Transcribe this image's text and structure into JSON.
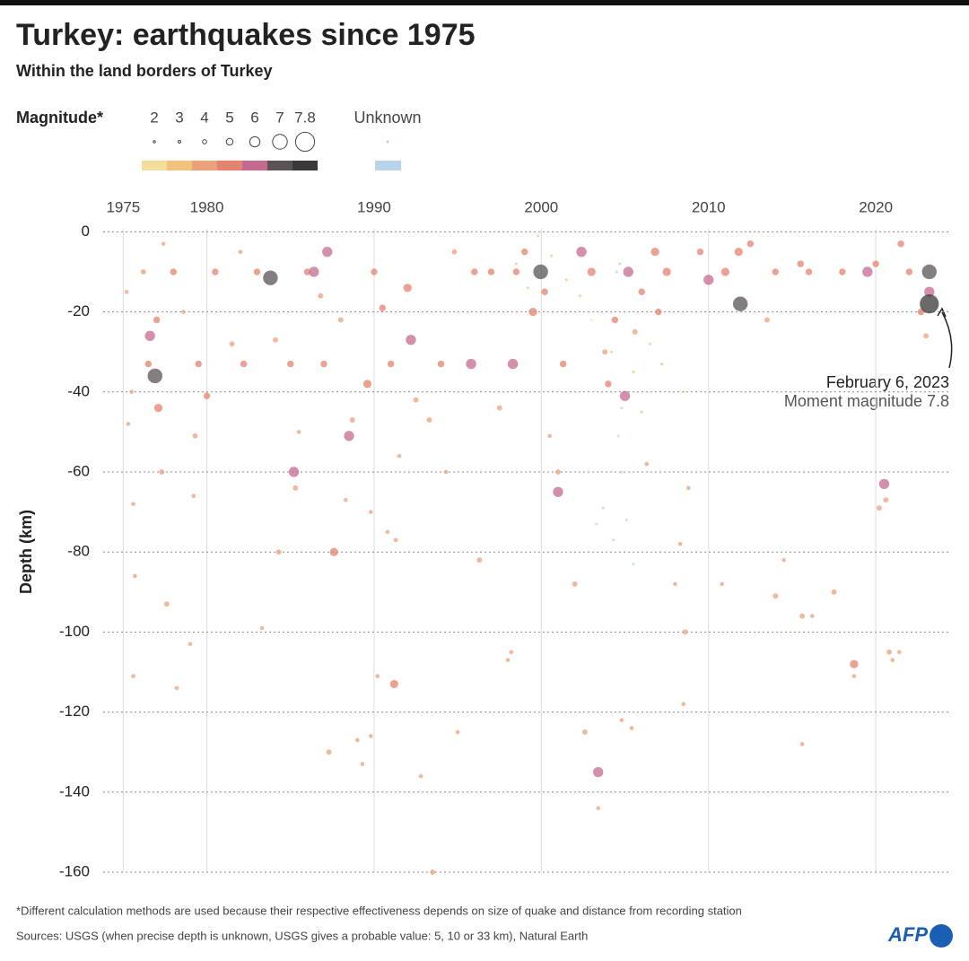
{
  "chart_data": {
    "type": "scatter",
    "title": "Turkey: earthquakes since 1975",
    "subtitle": "Within the land borders of Turkey",
    "y_label": "Depth (km)",
    "legend_title": "Magnitude*",
    "legend_sizes": [
      2,
      3,
      4,
      5,
      6,
      7,
      7.8
    ],
    "magnitude_colors": [
      "#f4dc9b",
      "#f1c27c",
      "#eba27c",
      "#e4836f",
      "#c46a8f",
      "#5a5457",
      "#3a3838"
    ],
    "unknown_label": "Unknown",
    "unknown_color": "#b8d4ea",
    "xlim": [
      1973.8,
      2024.5
    ],
    "xticks": [
      1975,
      1980,
      1990,
      2000,
      2010,
      2020
    ],
    "ylim": [
      -160,
      3
    ],
    "yticks": [
      0,
      -20,
      -40,
      -60,
      -80,
      -100,
      -120,
      -140,
      -160
    ],
    "grid": true,
    "x": [
      1975.2,
      1975.5,
      1975.3,
      1975.6,
      1975.7,
      1975.6,
      1976.2,
      1976.5,
      1976.6,
      1976.9,
      1977.1,
      1977.3,
      1977.6,
      1977.0,
      1977.4,
      1978.0,
      1978.2,
      1978.6,
      1979.0,
      1979.2,
      1979.3,
      1979.5,
      1980.0,
      1980.5,
      1981.5,
      1982.0,
      1982.2,
      1983.0,
      1983.3,
      1983.8,
      1984.1,
      1984.3,
      1985.0,
      1985.2,
      1985.3,
      1985.5,
      1986.0,
      1986.4,
      1986.8,
      1987.2,
      1987.0,
      1987.6,
      1987.3,
      1988.0,
      1988.3,
      1988.5,
      1988.7,
      1989.0,
      1989.3,
      1989.6,
      1989.8,
      1989.8,
      1990.0,
      1990.2,
      1990.5,
      1990.8,
      1991.0,
      1991.2,
      1991.3,
      1991.5,
      1992.0,
      1992.2,
      1992.5,
      1992.8,
      1993.3,
      1993.5,
      1994.0,
      1994.3,
      1994.8,
      1995.0,
      1995.8,
      1996.0,
      1996.3,
      1997.0,
      1997.5,
      1998.0,
      1998.2,
      1998.5,
      1998.3,
      1999.0,
      1999.5,
      1999.96,
      2000.2,
      2000.5,
      2001.0,
      2001.0,
      2001.3,
      2002.0,
      2002.4,
      2002.6,
      2003.0,
      2003.4,
      2003.4,
      2003.8,
      2004.0,
      2004.4,
      2004.8,
      2005.0,
      2005.2,
      2005.4,
      2005.6,
      2006.0,
      2006.3,
      2006.8,
      2007.0,
      2007.5,
      2008.0,
      2008.3,
      2008.5,
      2008.8,
      2008.6,
      2009.5,
      2010.0,
      2010.8,
      2011.0,
      2011.9,
      2011.8,
      2012.5,
      2013.5,
      2014.0,
      2014.0,
      2014.5,
      2015.5,
      2015.6,
      2015.6,
      2016.2,
      2016.0,
      2017.5,
      2018.0,
      2018.7,
      2018.7,
      2019.5,
      2020.0,
      2020.2,
      2020.5,
      2020.6,
      2020.8,
      2021.0,
      2021.4,
      2021.5,
      2022.0,
      2022.7,
      2023.0,
      2023.2,
      2023.2,
      2023.2,
      2004.5,
      2004.6,
      2003.3,
      2003.7,
      2004.3,
      2004.8,
      2005.1,
      2005.5,
      2004.8,
      1998.5,
      1999.2,
      2000.6,
      2001.5,
      2002.3,
      2004.2,
      2005.5,
      2006.5,
      2007.2,
      2004.7,
      2003.0,
      1999.8,
      2008.5,
      2006.0
    ],
    "values": [
      -15,
      -40,
      -48,
      -68,
      -86,
      -111,
      -10,
      -33,
      -26,
      -36,
      -44,
      -60,
      -93,
      -22,
      -3,
      -10,
      -114,
      -20,
      -103,
      -66,
      -51,
      -33,
      -41,
      -10,
      -28,
      -5,
      -33,
      -10,
      -99,
      -11.5,
      -27,
      -80,
      -33,
      -60,
      -64,
      -50,
      -10,
      -10,
      -16,
      -5,
      -33,
      -80,
      -130,
      -22,
      -67,
      -51,
      -47,
      -127,
      -133,
      -38,
      -70,
      -126,
      -10,
      -111,
      -19,
      -75,
      -33,
      -113,
      -77,
      -56,
      -14,
      -27,
      -42,
      -136,
      -47,
      -160,
      -33,
      -60,
      -5,
      -125,
      -33,
      -10,
      -82,
      -10,
      -44,
      -107,
      -105,
      -10,
      -33,
      -5,
      -20,
      -10,
      -15,
      -51,
      -65,
      -60,
      -33,
      -88,
      -5,
      -125,
      -10,
      -135,
      -144,
      -30,
      -38,
      -22,
      -122,
      -41,
      -10,
      -124,
      -25,
      -15,
      -58,
      -5,
      -20,
      -10,
      -88,
      -78,
      -118,
      -64,
      -100,
      -5,
      -12,
      -88,
      -10,
      -18,
      -5,
      -3,
      -22,
      -10,
      -91,
      -82,
      -8,
      -128,
      -96,
      -96,
      -10,
      -90,
      -10,
      -108,
      -111,
      -10,
      -8,
      -69,
      -63,
      -67,
      -105,
      -107,
      -105,
      -3,
      -10,
      -20,
      -26,
      -15,
      -10,
      -18,
      -10,
      -51,
      -73,
      -69,
      -77,
      -60,
      -72,
      -83,
      -44,
      -8,
      -14,
      -6,
      -12,
      -16,
      -30,
      -35,
      -28,
      -33,
      -8,
      -22,
      -1,
      -40,
      -45
    ],
    "magnitudes": [
      4,
      4,
      4,
      4,
      4,
      4,
      4.5,
      5,
      6,
      7,
      5.5,
      4.5,
      4.5,
      5,
      4,
      5,
      4,
      4,
      4,
      4,
      4.5,
      5,
      5,
      5,
      4.5,
      4,
      5,
      5,
      4,
      7,
      4.5,
      4.5,
      5,
      6,
      4.5,
      4,
      5,
      6,
      4.5,
      6,
      5,
      5.5,
      4.5,
      4.5,
      4,
      6,
      4.5,
      4,
      4,
      5.5,
      4,
      4,
      5,
      4,
      5,
      4,
      5,
      5.5,
      4,
      4,
      5.5,
      6,
      4.5,
      4,
      4.5,
      4.5,
      5,
      4,
      4.5,
      4,
      6,
      5,
      4.5,
      5,
      4.5,
      4,
      4,
      5,
      6,
      5,
      5.5,
      7,
      5,
      4,
      6,
      4.5,
      5,
      4.5,
      6,
      4.5,
      5.5,
      6,
      4,
      4.5,
      5,
      5,
      4,
      6,
      6,
      4,
      4.5,
      5,
      4,
      5.5,
      5,
      5.5,
      4,
      4,
      4,
      4,
      4.5,
      5,
      6,
      4,
      5.5,
      7,
      5.5,
      5,
      4.5,
      5,
      4.5,
      4,
      5,
      4,
      4.5,
      4,
      5,
      4.5,
      5,
      5.5,
      4,
      6,
      5,
      4.5,
      6,
      4.5,
      4.5,
      4,
      4,
      5,
      5,
      5,
      4.5,
      6,
      7,
      7.8,
      null,
      null,
      null,
      null,
      null,
      null,
      null,
      null,
      null,
      3,
      3,
      3,
      3,
      3,
      3,
      3,
      3,
      3,
      3,
      2.5,
      3,
      3,
      3
    ],
    "annotation_title": "February 6, 2023",
    "annotation_text": "Moment magnitude 7.8",
    "footnote": "*Different calculation methods are used because their respective effectiveness depends on size of quake and distance from recording station",
    "sources": "Sources: USGS (when precise depth is unknown, USGS gives a probable value: 5, 10 or 33 km), Natural Earth",
    "logo": "AFP"
  }
}
